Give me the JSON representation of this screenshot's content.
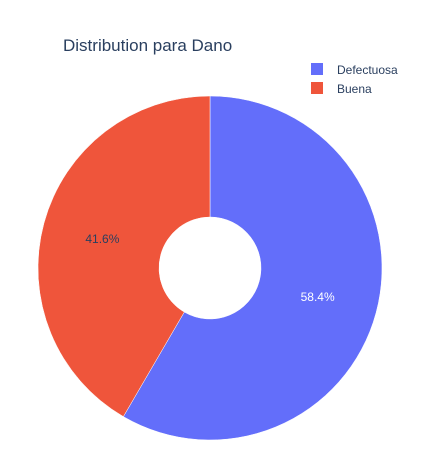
{
  "chart_data": {
    "type": "pie",
    "title": "Distribution para Dano",
    "hole": true,
    "legend_position": "top-right",
    "labels": [
      "Defectuosa",
      "Buena"
    ],
    "values": [
      58.4,
      41.6
    ],
    "percent_labels": [
      "58.4%",
      "41.6%"
    ],
    "colors": [
      "#636efa",
      "#ef553b"
    ],
    "label_colors": [
      "#ffffff",
      "#2a3f5f"
    ]
  }
}
